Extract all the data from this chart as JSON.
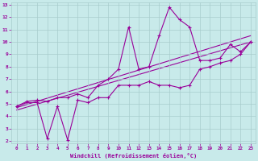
{
  "xlabel": "Windchill (Refroidissement éolien,°C)",
  "xlim": [
    -0.5,
    23.5
  ],
  "ylim": [
    1.8,
    13.2
  ],
  "xticks": [
    0,
    1,
    2,
    3,
    4,
    5,
    6,
    7,
    8,
    9,
    10,
    11,
    12,
    13,
    14,
    15,
    16,
    17,
    18,
    19,
    20,
    21,
    22,
    23
  ],
  "yticks": [
    2,
    3,
    4,
    5,
    6,
    7,
    8,
    9,
    10,
    11,
    12,
    13
  ],
  "bg_color": "#c8eaea",
  "grid_color": "#a8cccc",
  "line_color": "#990099",
  "line1_x": [
    0,
    1,
    2,
    3,
    4,
    5,
    6,
    7,
    8,
    9,
    10,
    11,
    12,
    13,
    14,
    15,
    16,
    17,
    18,
    19,
    20,
    21,
    22,
    23
  ],
  "line1_y": [
    4.8,
    5.2,
    5.3,
    5.2,
    5.5,
    5.5,
    5.8,
    5.5,
    6.5,
    7.0,
    7.8,
    11.2,
    7.8,
    8.0,
    10.5,
    12.8,
    11.8,
    11.2,
    8.5,
    8.5,
    8.7,
    9.8,
    9.2,
    10.0
  ],
  "line2_x": [
    0,
    1,
    2,
    3,
    4,
    5,
    6,
    7,
    8,
    9,
    10,
    11,
    12,
    13,
    14,
    15,
    16,
    17,
    18,
    19,
    20,
    21,
    22,
    23
  ],
  "line2_y": [
    4.8,
    5.1,
    5.1,
    2.2,
    4.8,
    2.1,
    5.3,
    5.1,
    5.5,
    5.5,
    6.5,
    6.5,
    6.5,
    6.8,
    6.5,
    6.5,
    6.3,
    6.5,
    7.8,
    8.0,
    8.3,
    8.5,
    9.0,
    10.0
  ],
  "trend1_x": [
    0,
    23
  ],
  "trend1_y": [
    4.7,
    10.5
  ],
  "trend2_x": [
    0,
    23
  ],
  "trend2_y": [
    4.5,
    10.0
  ]
}
